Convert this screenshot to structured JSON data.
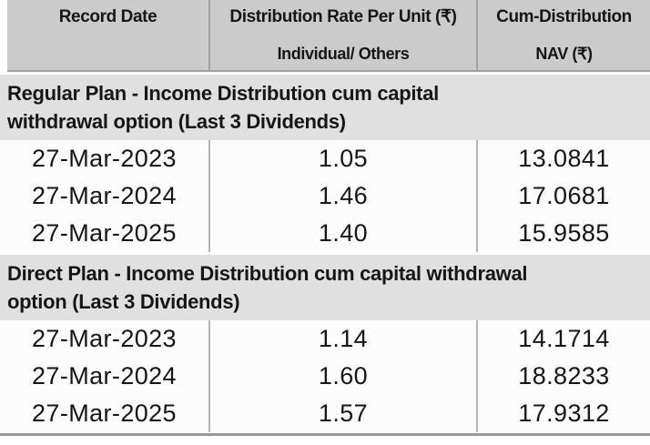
{
  "table": {
    "header": {
      "col1": "Record Date",
      "col2_line1": "Distribution Rate Per Unit (₹)",
      "col2_line2": "Individual/ Others",
      "col3_line1": "Cum-Distribution",
      "col3_line2": "NAV (₹)"
    },
    "sections": [
      {
        "title": "Regular Plan - Income Distribution cum capital withdrawal option (Last 3 Dividends)",
        "rows": [
          {
            "record_date": "27-Mar-2023",
            "rate_per_unit": "1.05",
            "cum_distribution_nav": "13.0841"
          },
          {
            "record_date": "27-Mar-2024",
            "rate_per_unit": "1.46",
            "cum_distribution_nav": "17.0681"
          },
          {
            "record_date": "27-Mar-2025",
            "rate_per_unit": "1.40",
            "cum_distribution_nav": "15.9585"
          }
        ]
      },
      {
        "title": "Direct Plan - Income Distribution cum capital withdrawal option (Last 3 Dividends)",
        "rows": [
          {
            "record_date": "27-Mar-2023",
            "rate_per_unit": "1.14",
            "cum_distribution_nav": "14.1714"
          },
          {
            "record_date": "27-Mar-2024",
            "rate_per_unit": "1.60",
            "cum_distribution_nav": "18.8233"
          },
          {
            "record_date": "27-Mar-2025",
            "rate_per_unit": "1.57",
            "cum_distribution_nav": "17.9312"
          }
        ]
      }
    ],
    "colors": {
      "header_bg": "#cbcbcb",
      "section_bg": "#e0e0e0",
      "row_bg": "#fcfcfc",
      "divider": "#b5b5b5",
      "divider_strong": "#a2a2a2",
      "bottom_border": "#9a9a9a",
      "text": "#161616"
    }
  }
}
